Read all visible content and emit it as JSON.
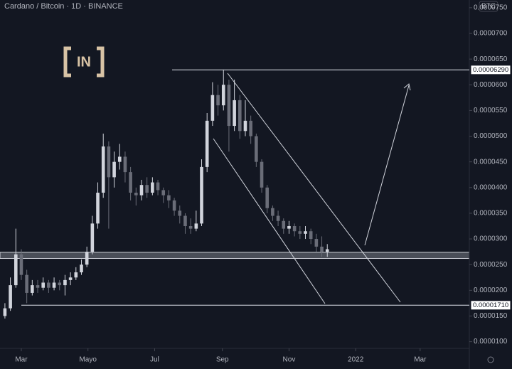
{
  "chart_data": {
    "type": "candlestick",
    "title": "Cardano / Bitcoin · 1D · BINANCE",
    "currency": "BTC",
    "logo": "IN",
    "up_color": "#d1d4dc",
    "down_color": "#6a6d78",
    "x": [
      -15,
      -10,
      -5,
      0,
      5,
      10,
      15,
      20,
      25,
      30,
      35,
      40,
      45,
      50,
      55,
      60,
      65,
      70,
      75,
      80,
      85,
      90,
      95,
      100,
      105,
      110,
      115,
      120,
      125,
      130,
      135,
      140,
      145,
      150,
      155,
      160,
      165,
      170,
      175,
      180,
      185,
      190,
      195,
      200,
      205,
      210,
      215,
      220,
      225,
      230,
      235,
      240,
      245,
      250,
      255,
      260,
      265,
      270,
      275,
      280
    ],
    "open": [
      1.5e-05,
      1.65e-05,
      2.1e-05,
      2.7e-05,
      2.3e-05,
      1.95e-05,
      2.1e-05,
      2.05e-05,
      2.15e-05,
      2.05e-05,
      2.15e-05,
      2.1e-05,
      2.2e-05,
      2.25e-05,
      2.35e-05,
      2.5e-05,
      2.75e-05,
      3.3e-05,
      3.9e-05,
      4.8e-05,
      4.2e-05,
      4.5e-05,
      4.6e-05,
      4.3e-05,
      3.9e-05,
      3.85e-05,
      4.05e-05,
      3.9e-05,
      4.1e-05,
      3.95e-05,
      3.85e-05,
      3.75e-05,
      3.55e-05,
      3.45e-05,
      3.25e-05,
      3.2e-05,
      3.3e-05,
      4.4e-05,
      5.3e-05,
      5.8e-05,
      5.6e-05,
      6e-05,
      5.2e-05,
      5.7e-05,
      5.1e-05,
      5.3e-05,
      5e-05,
      4.5e-05,
      4e-05,
      3.6e-05,
      3.45e-05,
      3.35e-05,
      3.2e-05,
      3.25e-05,
      3.15e-05,
      3.1e-05,
      3.15e-05,
      3e-05,
      2.85e-05,
      2.75e-05
    ],
    "high": [
      1.75e-05,
      2.25e-05,
      3.2e-05,
      2.8e-05,
      2.4e-05,
      2.2e-05,
      2.2e-05,
      2.25e-05,
      2.2e-05,
      2.25e-05,
      2.2e-05,
      2.3e-05,
      2.35e-05,
      2.45e-05,
      2.6e-05,
      2.85e-05,
      3.45e-05,
      4.1e-05,
      5.05e-05,
      4.9e-05,
      4.7e-05,
      4.85e-05,
      4.7e-05,
      4.4e-05,
      4e-05,
      4.15e-05,
      4.2e-05,
      4.2e-05,
      4.15e-05,
      4e-05,
      3.95e-05,
      3.8e-05,
      3.65e-05,
      3.5e-05,
      3.4e-05,
      3.55e-05,
      4.55e-05,
      5.45e-05,
      6.05e-05,
      6e-05,
      6.29e-05,
      6.1e-05,
      6.1e-05,
      5.8e-05,
      5.7e-05,
      5.4e-05,
      5.05e-05,
      4.55e-05,
      4.05e-05,
      3.65e-05,
      3.55e-05,
      3.4e-05,
      3.35e-05,
      3.3e-05,
      3.25e-05,
      3.25e-05,
      3.2e-05,
      3.1e-05,
      3.05e-05,
      2.9e-05
    ],
    "low": [
      1.45e-05,
      1.6e-05,
      2.05e-05,
      2.2e-05,
      1.75e-05,
      1.9e-05,
      1.95e-05,
      2e-05,
      1.95e-05,
      2e-05,
      2e-05,
      1.9e-05,
      2.1e-05,
      2.2e-05,
      2.3e-05,
      2.45e-05,
      2.7e-05,
      3.2e-05,
      3.8e-05,
      3.2e-05,
      4e-05,
      4.35e-05,
      4.1e-05,
      3.75e-05,
      3.65e-05,
      3.75e-05,
      3.8e-05,
      3.85e-05,
      3.85e-05,
      3.7e-05,
      3.6e-05,
      3.45e-05,
      3.3e-05,
      3.1e-05,
      3.1e-05,
      3.15e-05,
      3.25e-05,
      4.3e-05,
      5.2e-05,
      5.4e-05,
      5.5e-05,
      4.7e-05,
      5.1e-05,
      4.95e-05,
      5e-05,
      4.85e-05,
      4.4e-05,
      3.9e-05,
      3.5e-05,
      3.35e-05,
      3.25e-05,
      3.1e-05,
      3.1e-05,
      3.05e-05,
      3e-05,
      3e-05,
      2.9e-05,
      2.75e-05,
      2.65e-05,
      2.65e-05
    ],
    "close": [
      1.65e-05,
      2.1e-05,
      2.7e-05,
      2.3e-05,
      1.95e-05,
      2.1e-05,
      2.05e-05,
      2.15e-05,
      2.05e-05,
      2.15e-05,
      2.1e-05,
      2.2e-05,
      2.25e-05,
      2.35e-05,
      2.5e-05,
      2.75e-05,
      3.3e-05,
      3.9e-05,
      4.8e-05,
      4.2e-05,
      4.5e-05,
      4.6e-05,
      4.3e-05,
      3.9e-05,
      3.85e-05,
      4.05e-05,
      3.9e-05,
      4.1e-05,
      3.95e-05,
      3.85e-05,
      3.75e-05,
      3.55e-05,
      3.45e-05,
      3.25e-05,
      3.2e-05,
      3.3e-05,
      4.4e-05,
      5.3e-05,
      5.8e-05,
      5.6e-05,
      6e-05,
      5.2e-05,
      5.7e-05,
      5.1e-05,
      5.3e-05,
      5e-05,
      4.5e-05,
      4e-05,
      3.6e-05,
      3.45e-05,
      3.35e-05,
      3.2e-05,
      3.25e-05,
      3.15e-05,
      3.1e-05,
      3.15e-05,
      3e-05,
      2.85e-05,
      2.75e-05,
      2.8e-05
    ],
    "levels": [
      {
        "value": 6.29e-05,
        "label": "0.00006290"
      },
      {
        "value": 1.71e-05,
        "label": "0.00001710"
      }
    ],
    "zone": [
      2.62e-05,
      2.74e-05
    ],
    "xlim": [
      -19.5,
      410
    ],
    "ylim": [
      8.7e-06,
      7.65e-05
    ],
    "xticks": [
      {
        "value": 0,
        "label": "Mar"
      },
      {
        "value": 61,
        "label": "Mayo"
      },
      {
        "value": 122,
        "label": "Jul"
      },
      {
        "value": 184,
        "label": "Sep"
      },
      {
        "value": 245,
        "label": "Nov"
      },
      {
        "value": 306,
        "label": "2022"
      },
      {
        "value": 365,
        "label": "Mar"
      }
    ],
    "yticks": [
      {
        "value": 1e-05,
        "label": "0.0000100"
      },
      {
        "value": 1.5e-05,
        "label": "0.0000150"
      },
      {
        "value": 2e-05,
        "label": "0.0000200"
      },
      {
        "value": 2.5e-05,
        "label": "0.0000250"
      },
      {
        "value": 3e-05,
        "label": "0.0000300"
      },
      {
        "value": 3.5e-05,
        "label": "0.0000350"
      },
      {
        "value": 4e-05,
        "label": "0.0000400"
      },
      {
        "value": 4.5e-05,
        "label": "0.0000450"
      },
      {
        "value": 5e-05,
        "label": "0.0000500"
      },
      {
        "value": 5.5e-05,
        "label": "0.0000550"
      },
      {
        "value": 6e-05,
        "label": "0.0000600"
      },
      {
        "value": 6.5e-05,
        "label": "0.0000650"
      },
      {
        "value": 7e-05,
        "label": "0.0000700"
      },
      {
        "value": 7.5e-05,
        "label": "0.0000750"
      }
    ]
  }
}
